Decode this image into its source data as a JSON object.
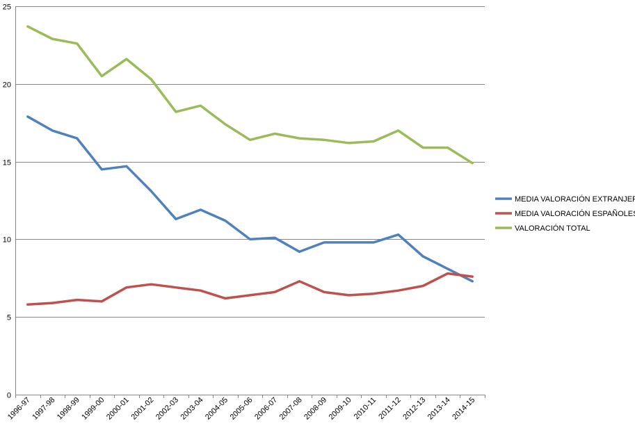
{
  "chart_data": {
    "type": "line",
    "title": "",
    "xlabel": "",
    "ylabel": "",
    "ylim": [
      0,
      25
    ],
    "yticks": [
      0,
      5,
      10,
      15,
      20,
      25
    ],
    "grid": "horizontal",
    "legend_position": "right",
    "categories": [
      "1996-97",
      "1997-98",
      "1998-99",
      "1999-00",
      "2000-01",
      "2001-02",
      "2002-03",
      "2003-04",
      "2004-05",
      "2005-06",
      "2006-07",
      "2007-08",
      "2008-09",
      "2009-10",
      "2010-11",
      "2011-12",
      "2012-13",
      "2013-14",
      "2014-15"
    ],
    "series": [
      {
        "name": "MEDIA VALORACIÓN EXTRANJEROS",
        "color": "#4f81bd",
        "values": [
          17.9,
          17.0,
          16.5,
          14.5,
          14.7,
          13.1,
          11.3,
          11.9,
          11.2,
          10.0,
          10.1,
          9.2,
          9.8,
          9.8,
          9.8,
          10.3,
          8.9,
          8.1,
          7.3
        ]
      },
      {
        "name": "MEDIA VALORACIÓN ESPAÑOLES",
        "color": "#c0504d",
        "values": [
          5.8,
          5.9,
          6.1,
          6.0,
          6.9,
          7.1,
          6.9,
          6.7,
          6.2,
          6.4,
          6.6,
          7.3,
          6.6,
          6.4,
          6.5,
          6.7,
          7.0,
          7.8,
          7.6
        ]
      },
      {
        "name": "VALORACIÓN TOTAL",
        "color": "#9bbb59",
        "values": [
          23.7,
          22.9,
          22.6,
          20.5,
          21.6,
          20.3,
          18.2,
          18.6,
          17.4,
          16.4,
          16.8,
          16.5,
          16.4,
          16.2,
          16.3,
          17.0,
          15.9,
          15.9,
          14.9
        ]
      }
    ]
  }
}
